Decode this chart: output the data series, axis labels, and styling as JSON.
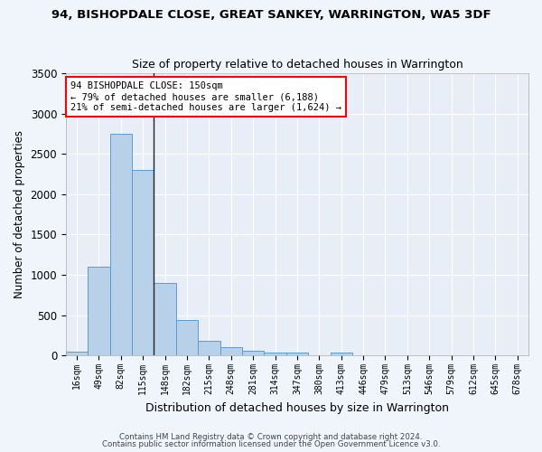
{
  "title": "94, BISHOPDALE CLOSE, GREAT SANKEY, WARRINGTON, WA5 3DF",
  "subtitle": "Size of property relative to detached houses in Warrington",
  "xlabel": "Distribution of detached houses by size in Warrington",
  "ylabel": "Number of detached properties",
  "bar_color": "#b8d0e8",
  "bar_edge_color": "#5b9bd5",
  "background_color": "#e8eef8",
  "grid_color": "#ffffff",
  "fig_background": "#f0f4fb",
  "categories": [
    "16sqm",
    "49sqm",
    "82sqm",
    "115sqm",
    "148sqm",
    "182sqm",
    "215sqm",
    "248sqm",
    "281sqm",
    "314sqm",
    "347sqm",
    "380sqm",
    "413sqm",
    "446sqm",
    "479sqm",
    "513sqm",
    "546sqm",
    "579sqm",
    "612sqm",
    "645sqm",
    "678sqm"
  ],
  "values": [
    50,
    1100,
    2750,
    2300,
    900,
    440,
    185,
    100,
    55,
    40,
    35,
    0,
    35,
    0,
    0,
    0,
    0,
    0,
    0,
    0,
    0
  ],
  "ylim": [
    0,
    3500
  ],
  "yticks": [
    0,
    500,
    1000,
    1500,
    2000,
    2500,
    3000,
    3500
  ],
  "vline_x": 3.5,
  "annotation_line1": "94 BISHOPDALE CLOSE: 150sqm",
  "annotation_line2": "← 79% of detached houses are smaller (6,188)",
  "annotation_line3": "21% of semi-detached houses are larger (1,624) →",
  "footer1": "Contains HM Land Registry data © Crown copyright and database right 2024.",
  "footer2": "Contains public sector information licensed under the Open Government Licence v3.0."
}
